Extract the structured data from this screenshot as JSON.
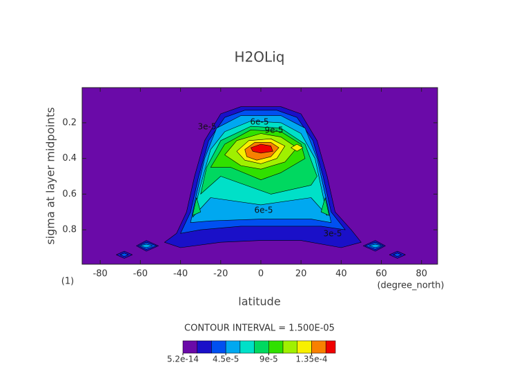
{
  "chart_data": {
    "type": "contour",
    "title": "H2OLiq",
    "x_label": "latitude",
    "y_label": "sigma at layer midpoints",
    "x_units": "(degree_north)",
    "y_units": "(1)",
    "xlim": [
      -89,
      88
    ],
    "xticks": [
      -80,
      -60,
      -40,
      -20,
      0,
      20,
      40,
      60,
      80
    ],
    "ylim": [
      0.993,
      0.003
    ],
    "yticks": [
      0.2,
      0.4,
      0.6,
      0.8
    ],
    "contour_interval": "CONTOUR INTERVAL = 1.500E-05",
    "levels": [
      5.2e-14,
      1.5e-05,
      3e-05,
      4.5e-05,
      6e-05,
      7.5e-05,
      9e-05,
      0.000105,
      0.00012,
      0.000135,
      0.00015
    ],
    "colors": [
      "#6a0aa8",
      "#1a10c8",
      "#0050f0",
      "#00a8f0",
      "#00e0c8",
      "#00d860",
      "#30e000",
      "#a0f000",
      "#f8f000",
      "#f88000",
      "#f00000"
    ],
    "colorbar_lim": [
      5.2e-14,
      0.00016
    ],
    "colorbar_ticks": [
      {
        "value": 5.2e-14,
        "label": "5.2e-14"
      },
      {
        "value": 4.5e-05,
        "label": "4.5e-5"
      },
      {
        "value": 9e-05,
        "label": "9e-5"
      },
      {
        "value": 0.000135,
        "label": "1.35e-4"
      }
    ],
    "contour_labels": [
      "3e-5",
      "6e-5",
      "9e-5",
      "6e-5",
      "3e-5"
    ]
  }
}
